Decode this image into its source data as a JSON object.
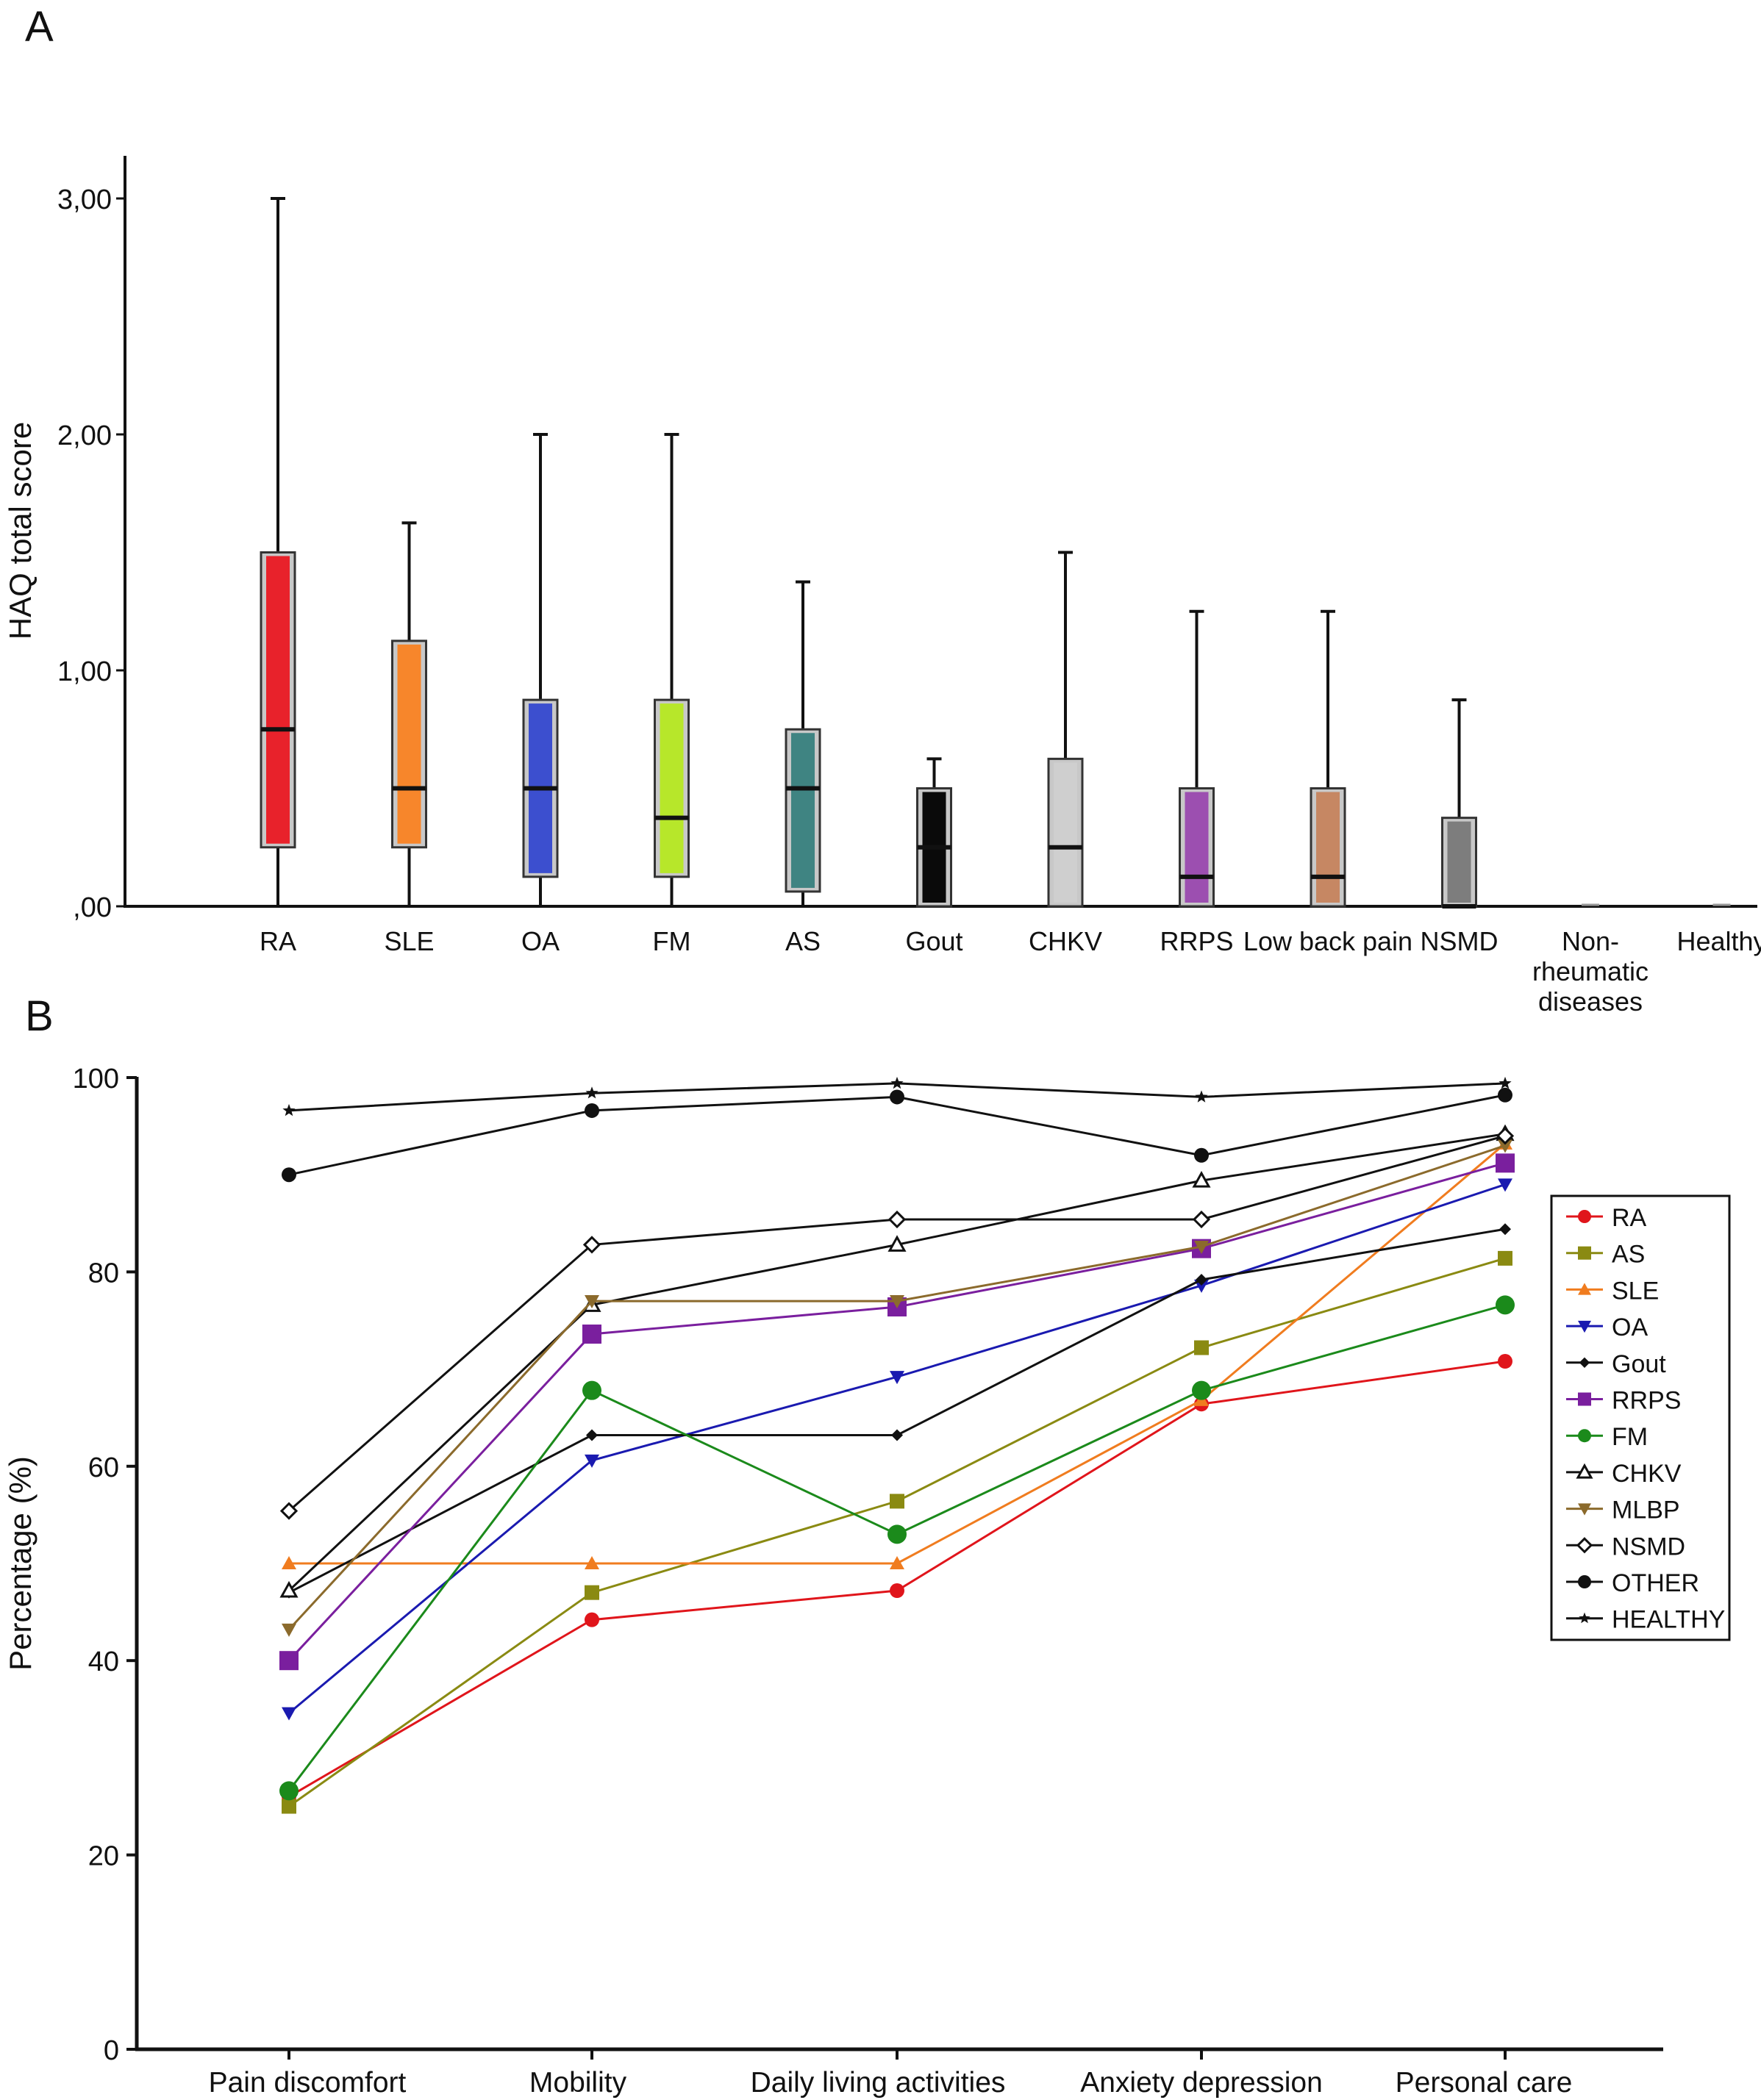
{
  "chart_data": [
    {
      "panel": "A",
      "type": "box",
      "ylabel": "HAQ total score",
      "ylim": [
        0,
        3.15
      ],
      "yticks": [
        0,
        1,
        2,
        3
      ],
      "ytick_labels": [
        ",00",
        "1,00",
        "2,00",
        "3,00"
      ],
      "categories": [
        {
          "label": "RA",
          "min": 0,
          "q1": 0.25,
          "median": 0.75,
          "q3": 1.5,
          "max": 3.0,
          "color": "#e8222b"
        },
        {
          "label": "SLE",
          "min": 0,
          "q1": 0.25,
          "median": 0.5,
          "q3": 1.125,
          "max": 1.625,
          "color": "#f7862b"
        },
        {
          "label": "OA",
          "min": 0,
          "q1": 0.125,
          "median": 0.5,
          "q3": 0.875,
          "max": 2.0,
          "color": "#3c4fcf"
        },
        {
          "label": "FM",
          "min": 0,
          "q1": 0.125,
          "median": 0.375,
          "q3": 0.875,
          "max": 2.0,
          "color": "#b7e72a"
        },
        {
          "label": "AS",
          "min": 0,
          "q1": 0.0625,
          "median": 0.5,
          "q3": 0.75,
          "max": 1.375,
          "color": "#3f8482"
        },
        {
          "label": "Gout",
          "min": 0,
          "q1": 0.0,
          "median": 0.25,
          "q3": 0.5,
          "max": 0.625,
          "color": "#0a0a0a"
        },
        {
          "label": "CHKV",
          "min": 0,
          "q1": 0.0,
          "median": 0.25,
          "q3": 0.625,
          "max": 1.5,
          "color": "#cfcfcf"
        },
        {
          "label": "RRPS",
          "min": 0,
          "q1": 0.0,
          "median": 0.125,
          "q3": 0.5,
          "max": 1.25,
          "color": "#9c4fb0"
        },
        {
          "label": "Low back pain",
          "min": 0,
          "q1": 0.0,
          "median": 0.125,
          "q3": 0.5,
          "max": 1.25,
          "color": "#c68763"
        },
        {
          "label": "NSMD",
          "min": 0,
          "q1": 0.0,
          "median": 0.0,
          "q3": 0.375,
          "max": 0.875,
          "color": "#7d7d7d"
        },
        {
          "label": "Non-rheumatic diseases",
          "label_lines": [
            "Non-",
            "rheumatic",
            "diseases"
          ],
          "min": 0,
          "q1": 0,
          "median": 0,
          "q3": 0,
          "max": 0,
          "color": "#cccccc"
        },
        {
          "label": "Healthy",
          "min": 0,
          "q1": 0,
          "median": 0,
          "q3": 0,
          "max": 0,
          "color": "#cccccc"
        }
      ]
    },
    {
      "panel": "B",
      "type": "line",
      "ylabel": "Percentage (%)",
      "ylim": [
        0,
        100
      ],
      "yticks": [
        0,
        20,
        40,
        60,
        80,
        100
      ],
      "categories": [
        "Pain discomfort",
        "Mobility",
        "Daily living activities",
        "Anxiety depression",
        "Personal care"
      ],
      "legend_position": "right",
      "series": [
        {
          "name": "RA",
          "color": "#e0151b",
          "marker": "circle",
          "values": [
            26,
            44.2,
            47.2,
            66.4,
            70.8
          ]
        },
        {
          "name": "AS",
          "color": "#8a8a12",
          "marker": "square",
          "values": [
            25,
            47,
            56.4,
            72.2,
            81.4
          ]
        },
        {
          "name": "SLE",
          "color": "#f07c1f",
          "marker": "triangle-up",
          "values": [
            50,
            50,
            50,
            66.8,
            93.2
          ]
        },
        {
          "name": "OA",
          "color": "#1a1ab0",
          "marker": "triangle-down",
          "values": [
            34.6,
            60.6,
            69.2,
            78.6,
            89
          ]
        },
        {
          "name": "Gout",
          "color": "#111111",
          "marker": "diamond",
          "values": [
            47,
            63.2,
            63.2,
            79.2,
            84.4
          ]
        },
        {
          "name": "RRPS",
          "color": "#7a1f9e",
          "marker": "square",
          "values": [
            40,
            73.6,
            76.4,
            82.4,
            91.2
          ]
        },
        {
          "name": "FM",
          "color": "#1b8a1b",
          "marker": "circle",
          "values": [
            26.6,
            67.8,
            53,
            67.8,
            76.6
          ]
        },
        {
          "name": "CHKV",
          "color": "#111111",
          "marker": "triangle-open",
          "values": [
            47.2,
            76.6,
            82.8,
            89.4,
            94.2
          ]
        },
        {
          "name": "MLBP",
          "color": "#8b6a2c",
          "marker": "triangle-down",
          "values": [
            43.2,
            77,
            77,
            82.6,
            93
          ]
        },
        {
          "name": "NSMD",
          "color": "#111111",
          "marker": "diamond-open",
          "values": [
            55.4,
            82.8,
            85.4,
            85.4,
            94
          ]
        },
        {
          "name": "OTHER",
          "color": "#111111",
          "marker": "circle",
          "values": [
            90,
            96.6,
            98,
            92,
            98.2
          ]
        },
        {
          "name": "HEALTHY",
          "color": "#111111",
          "marker": "star",
          "values": [
            96.6,
            98.4,
            99.4,
            98,
            99.4
          ]
        }
      ]
    }
  ],
  "panel_labels": {
    "a": "A",
    "b": "B"
  }
}
